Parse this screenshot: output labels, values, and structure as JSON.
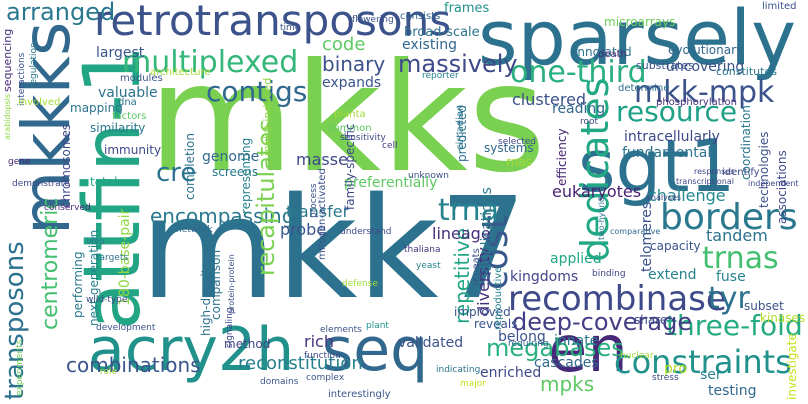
{
  "words": [
    {
      "text": "mkks",
      "color": "#7ad151"
    },
    {
      "text": "mkk7",
      "color": "#2c728e"
    },
    {
      "text": "sparsely",
      "color": "#2c728e"
    },
    {
      "text": "retrotransposons",
      "color": "#3b528b"
    },
    {
      "text": "sgt1",
      "color": "#2c728e"
    },
    {
      "text": "attfin-1",
      "color": "#21a585"
    },
    {
      "text": "mkkks",
      "color": "#31688e"
    },
    {
      "text": "acry2h",
      "color": "#21918c"
    },
    {
      "text": "seq",
      "color": "#31688e"
    },
    {
      "text": "en",
      "color": "#482878"
    },
    {
      "text": "multiplexed",
      "color": "#35b779"
    },
    {
      "text": "contigs",
      "color": "#31688e"
    },
    {
      "text": "recombinase",
      "color": "#3e4989"
    },
    {
      "text": "dedicates",
      "color": "#22a884"
    },
    {
      "text": "one-third",
      "color": "#2ab07f"
    },
    {
      "text": "mkk-mpk",
      "color": "#3b528b"
    },
    {
      "text": "resource",
      "color": "#1fa187"
    },
    {
      "text": "borders",
      "color": "#2a788e"
    },
    {
      "text": "trnas",
      "color": "#44bf70"
    },
    {
      "text": "tyr",
      "color": "#2c728e"
    },
    {
      "text": "cost",
      "color": "#38588c"
    },
    {
      "text": "trna",
      "color": "#26828e"
    },
    {
      "text": "cre",
      "color": "#2c728e"
    },
    {
      "text": "code",
      "color": "#5ec962"
    },
    {
      "text": "binary",
      "color": "#3b528b"
    },
    {
      "text": "massively",
      "color": "#3e4989"
    },
    {
      "text": "arranged",
      "color": "#2a788e"
    },
    {
      "text": "transposons",
      "color": "#2c728e"
    },
    {
      "text": "centromeric",
      "color": "#44bf70"
    },
    {
      "text": "constraints",
      "color": "#21918c"
    },
    {
      "text": "megabases",
      "color": "#2ab07f"
    },
    {
      "text": "three-fold",
      "color": "#25ab82"
    },
    {
      "text": "deep-coverage",
      "color": "#433e85"
    },
    {
      "text": "combinations",
      "color": "#39558c"
    },
    {
      "text": "reconstitution",
      "color": "#27808e"
    },
    {
      "text": "mpks",
      "color": "#5ec962"
    },
    {
      "text": "encompassing",
      "color": "#2a788e"
    },
    {
      "text": "recapitulates",
      "color": "#7ad151"
    },
    {
      "text": "repetitive",
      "color": "#21a585"
    },
    {
      "text": "diversity",
      "color": "#46307e"
    },
    {
      "text": "lineage",
      "color": "#472d7b"
    },
    {
      "text": "clustered",
      "color": "#3b528b"
    },
    {
      "text": "intracellularly",
      "color": "#3e4989"
    },
    {
      "text": "fundamental",
      "color": "#2c728e"
    },
    {
      "text": "challenge",
      "color": "#23898e"
    },
    {
      "text": "eukaryotes",
      "color": "#481f70"
    },
    {
      "text": "reading",
      "color": "#31688e"
    },
    {
      "text": "uncovering",
      "color": "#3b528b"
    },
    {
      "text": "telomeres",
      "color": "#3b528b"
    },
    {
      "text": "tandem",
      "color": "#2c728e"
    },
    {
      "text": "applied",
      "color": "#22a884"
    },
    {
      "text": "kingdoms",
      "color": "#414487"
    },
    {
      "text": "extend",
      "color": "#26828e"
    },
    {
      "text": "fuse",
      "color": "#26828e"
    },
    {
      "text": "innate",
      "color": "#2a788e"
    },
    {
      "text": "rich",
      "color": "#46337f"
    },
    {
      "text": "validated",
      "color": "#3b528b"
    },
    {
      "text": "belong",
      "color": "#3b528b"
    },
    {
      "text": "cascades",
      "color": "#31688e"
    },
    {
      "text": "enriched",
      "color": "#3e4989"
    },
    {
      "text": "testing",
      "color": "#31688e"
    },
    {
      "text": "ser",
      "color": "#26828e"
    },
    {
      "text": "pro",
      "color": "#b5de2b"
    },
    {
      "text": "transfer",
      "color": "#2a788e"
    },
    {
      "text": "probe",
      "color": "#39558c"
    },
    {
      "text": "masse",
      "color": "#3e4989"
    },
    {
      "text": "genome",
      "color": "#31688e"
    },
    {
      "text": "screens",
      "color": "#2a788e"
    },
    {
      "text": "largest",
      "color": "#39558c"
    },
    {
      "text": "valuable",
      "color": "#2c728e"
    },
    {
      "text": "similarity",
      "color": "#2a788e"
    },
    {
      "text": "immunity",
      "color": "#3e4989"
    },
    {
      "text": "mapping",
      "color": "#2c728e"
    },
    {
      "text": "total",
      "color": "#22a884"
    },
    {
      "text": "performing",
      "color": "#2a788e"
    },
    {
      "text": "next-generation",
      "color": "#26828e"
    },
    {
      "text": "180-base-pair",
      "color": "#8fd744"
    },
    {
      "text": "high-density",
      "color": "#2c728e"
    },
    {
      "text": "comparison",
      "color": "#2c728e"
    },
    {
      "text": "method",
      "color": "#414487"
    },
    {
      "text": "completion",
      "color": "#2c728e"
    },
    {
      "text": "representing",
      "color": "#26828e"
    },
    {
      "text": "preferentially",
      "color": "#5ec962"
    },
    {
      "text": "duplications",
      "color": "#2a788e"
    },
    {
      "text": "expands",
      "color": "#39558c"
    },
    {
      "text": "existing",
      "color": "#31688e"
    },
    {
      "text": "broad-scale",
      "color": "#2c728e"
    },
    {
      "text": "frames",
      "color": "#21918c"
    },
    {
      "text": "annotated",
      "color": "#2c728e"
    },
    {
      "text": "evolutionary",
      "color": "#31688e"
    },
    {
      "text": "microarrays",
      "color": "#6ccd5a"
    },
    {
      "text": "limited",
      "color": "#3b528b"
    },
    {
      "text": "consists",
      "color": "#31688e"
    },
    {
      "text": "substrates",
      "color": "#39558c"
    },
    {
      "text": "constitutes",
      "color": "#2a788e"
    },
    {
      "text": "death",
      "color": "#482878"
    },
    {
      "text": "determine",
      "color": "#2c728e"
    },
    {
      "text": "phosphorylation",
      "color": "#46307e"
    },
    {
      "text": "mitogen-activated",
      "color": "#3b528b"
    },
    {
      "text": "systems",
      "color": "#31688e"
    },
    {
      "text": "predicted",
      "color": "#2c728e"
    },
    {
      "text": "efficiency",
      "color": "#482475"
    },
    {
      "text": "rnas",
      "color": "#a2da37"
    },
    {
      "text": "coordination",
      "color": "#2a788e"
    },
    {
      "text": "technologies",
      "color": "#3b528b"
    },
    {
      "text": "associations",
      "color": "#3e4989"
    },
    {
      "text": "identify",
      "color": "#3e4989"
    },
    {
      "text": "capacity",
      "color": "#3b528b"
    },
    {
      "text": "share",
      "color": "#3e4989"
    },
    {
      "text": "subset",
      "color": "#3b528b"
    },
    {
      "text": "improved",
      "color": "#39558c"
    },
    {
      "text": "reveals",
      "color": "#39558c"
    },
    {
      "text": "repeats",
      "color": "#3b528b"
    },
    {
      "text": "reproductive",
      "color": "#26828e"
    },
    {
      "text": "kinases",
      "color": "#b5de2b"
    },
    {
      "text": "investigate",
      "color": "#c8e020"
    },
    {
      "text": "sequencing",
      "color": "#472d7b"
    },
    {
      "text": "interactions",
      "color": "#3b528b"
    },
    {
      "text": "regulation",
      "color": "#2a788e"
    },
    {
      "text": "modules",
      "color": "#39558c"
    },
    {
      "text": "architecture",
      "color": "#a2da37"
    },
    {
      "text": "involved",
      "color": "#a2da37"
    },
    {
      "text": "dna",
      "color": "#2c728e"
    },
    {
      "text": "factors",
      "color": "#5ec962"
    },
    {
      "text": "chromosomes",
      "color": "#3e4989"
    },
    {
      "text": "gene",
      "color": "#482475"
    },
    {
      "text": "demonstrate",
      "color": "#3e4989"
    },
    {
      "text": "conserved",
      "color": "#482878"
    },
    {
      "text": "vivo",
      "color": "#2a788e"
    },
    {
      "text": "targets",
      "color": "#2c728e"
    },
    {
      "text": "wild-type",
      "color": "#3e4989"
    },
    {
      "text": "development",
      "color": "#3b528b"
    },
    {
      "text": "experiments",
      "color": "#6ccd5a"
    },
    {
      "text": "role",
      "color": "#a2da37"
    },
    {
      "text": "domains",
      "color": "#39558c"
    },
    {
      "text": "complex",
      "color": "#39558c"
    },
    {
      "text": "function",
      "color": "#3e4989"
    },
    {
      "text": "interestingly",
      "color": "#39558c"
    },
    {
      "text": "elements",
      "color": "#3b528b"
    },
    {
      "text": "defense",
      "color": "#a2da37"
    },
    {
      "text": "plant",
      "color": "#21918c"
    },
    {
      "text": "indicating",
      "color": "#2c728e"
    },
    {
      "text": "major",
      "color": "#c8e020"
    },
    {
      "text": "nuclear",
      "color": "#a2da37"
    },
    {
      "text": "stress",
      "color": "#3e4989"
    },
    {
      "text": "requiring",
      "color": "#31688e"
    },
    {
      "text": "binding",
      "color": "#414487"
    },
    {
      "text": "two-hybrid",
      "color": "#2c728e"
    },
    {
      "text": "yeast",
      "color": "#26828e"
    },
    {
      "text": "thaliana",
      "color": "#46307e"
    },
    {
      "text": "understand",
      "color": "#3e4989"
    },
    {
      "text": "unknown",
      "color": "#3b528b"
    },
    {
      "text": "process",
      "color": "#3b528b"
    },
    {
      "text": "cell",
      "color": "#433e85"
    },
    {
      "text": "sensitivity",
      "color": "#3e4989"
    },
    {
      "text": "network",
      "color": "#31688e"
    },
    {
      "text": "mkk9-induced",
      "color": "#8fd744"
    },
    {
      "text": "common",
      "color": "#5ec962"
    },
    {
      "text": "planta",
      "color": "#a2da37"
    },
    {
      "text": "flowering",
      "color": "#3b528b"
    },
    {
      "text": "time",
      "color": "#3b528b"
    },
    {
      "text": "reporter",
      "color": "#26828e"
    },
    {
      "text": "circadian",
      "color": "#2a788e"
    },
    {
      "text": "family-specific",
      "color": "#3e4989"
    },
    {
      "text": "root",
      "color": "#3e4989"
    },
    {
      "text": "responses",
      "color": "#3e4989"
    },
    {
      "text": "analyses",
      "color": "#3e4989"
    },
    {
      "text": "transcriptional",
      "color": "#3e4989"
    },
    {
      "text": "comparative",
      "color": "#31688e"
    },
    {
      "text": "signaling",
      "color": "#3e4989"
    },
    {
      "text": "protein-protein",
      "color": "#3b528b"
    },
    {
      "text": "selected",
      "color": "#3e4989"
    },
    {
      "text": "arabidopsis",
      "color": "#8fd744"
    },
    {
      "text": "independent",
      "color": "#3e4989"
    }
  ]
}
